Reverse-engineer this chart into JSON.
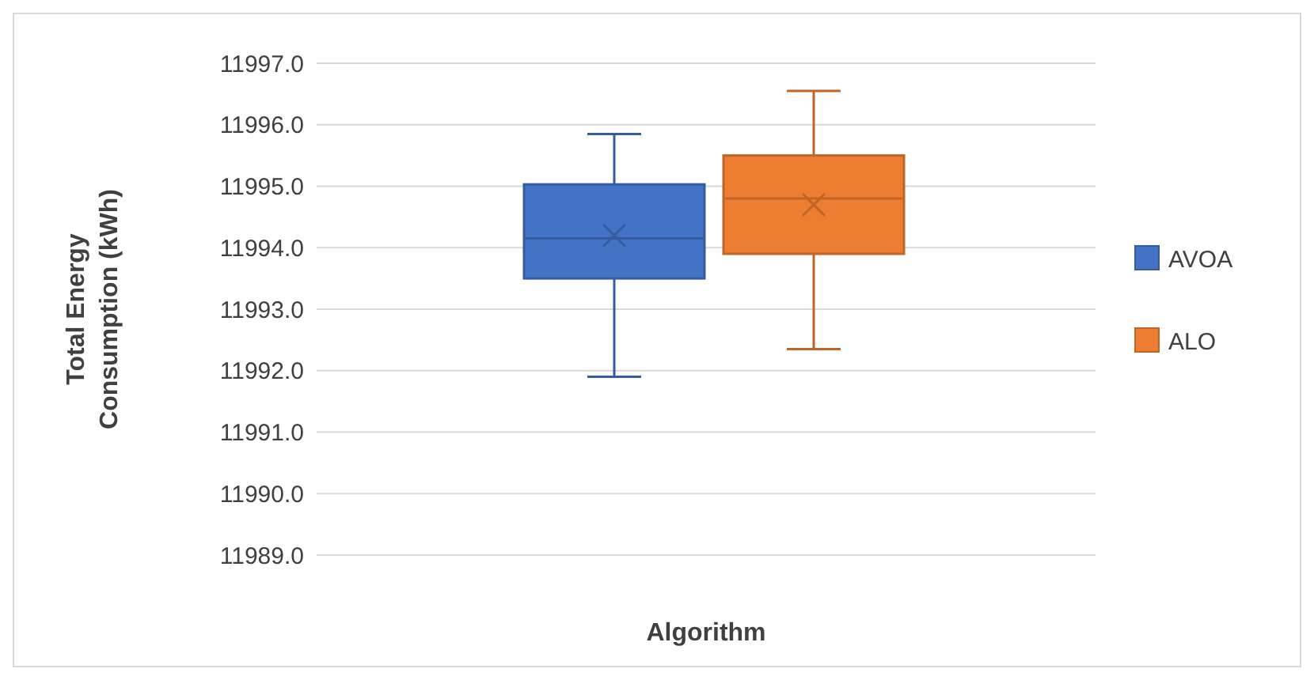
{
  "chart_data": {
    "type": "box",
    "xlabel": "Algorithm",
    "ylabel": "Total Energy Consumption (kWh)",
    "categories": [
      null
    ],
    "series": [
      {
        "name": "AVOA",
        "color": "#4472c4",
        "boxes": [
          {
            "low": 11991.9,
            "q1": 11993.5,
            "median": 11994.15,
            "q3": 11995.03,
            "high": 11995.85,
            "mean": 11994.2
          }
        ]
      },
      {
        "name": "ALO",
        "color": "#ed7d31",
        "boxes": [
          {
            "low": 11992.35,
            "q1": 11993.9,
            "median": 11994.8,
            "q3": 11995.5,
            "high": 11996.55,
            "mean": 11994.7
          }
        ]
      }
    ],
    "ylim": [
      11989,
      11997
    ],
    "yticks": [
      {
        "value": 11989,
        "label": "11989.0"
      },
      {
        "value": 11990,
        "label": "11990.0"
      },
      {
        "value": 11991,
        "label": "11991.0"
      },
      {
        "value": 11992,
        "label": "11992.0"
      },
      {
        "value": 11993,
        "label": "11993.0"
      },
      {
        "value": 11994,
        "label": "11994.0"
      },
      {
        "value": 11995,
        "label": "11995.0"
      },
      {
        "value": 11996,
        "label": "11996.0"
      },
      {
        "value": 11997,
        "label": "11997.0"
      }
    ],
    "grid": "y",
    "legend": "right"
  }
}
